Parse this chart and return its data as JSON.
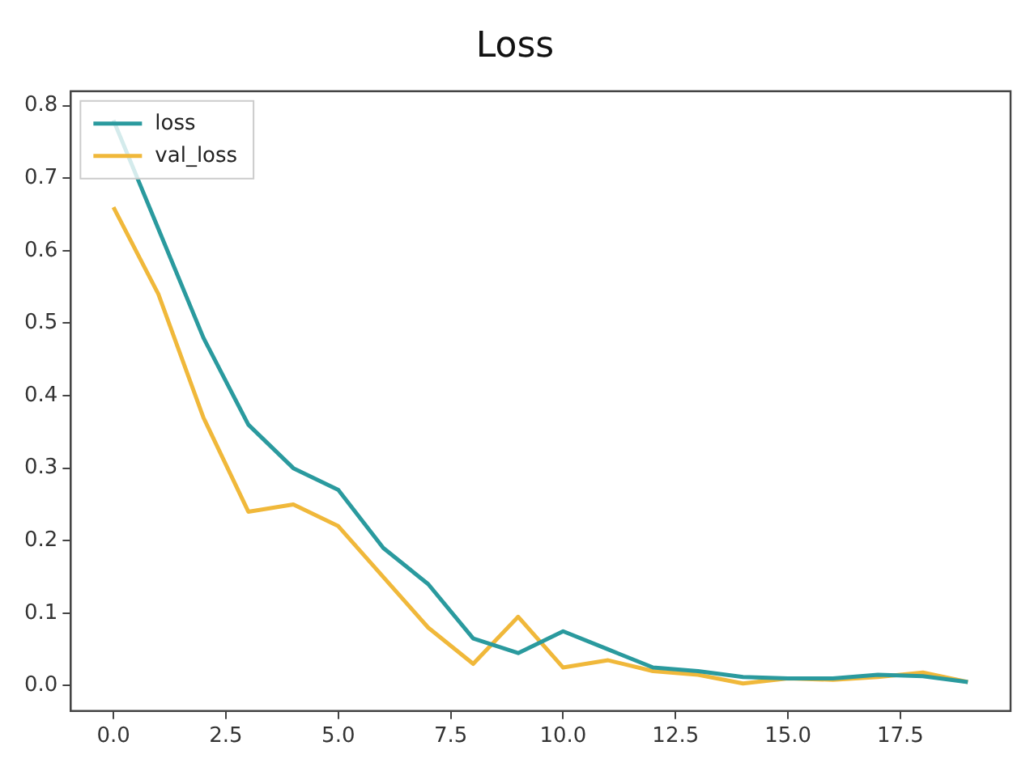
{
  "chart_data": {
    "type": "line",
    "title": "Loss",
    "x": [
      0,
      1,
      2,
      3,
      4,
      5,
      6,
      7,
      8,
      9,
      10,
      11,
      12,
      13,
      14,
      15,
      16,
      17,
      18,
      19
    ],
    "series": [
      {
        "name": "loss",
        "color": "#2a9a9e",
        "values": [
          0.78,
          0.63,
          0.48,
          0.36,
          0.3,
          0.27,
          0.19,
          0.14,
          0.065,
          0.045,
          0.075,
          0.05,
          0.025,
          0.02,
          0.012,
          0.01,
          0.01,
          0.015,
          0.013,
          0.005
        ]
      },
      {
        "name": "val_loss",
        "color": "#f0b83a",
        "values": [
          0.66,
          0.54,
          0.37,
          0.24,
          0.25,
          0.22,
          0.15,
          0.08,
          0.03,
          0.095,
          0.025,
          0.035,
          0.02,
          0.015,
          0.003,
          0.01,
          0.008,
          0.012,
          0.018,
          0.005
        ]
      }
    ],
    "xlim": [
      -0.95,
      19.95
    ],
    "xticks": [
      {
        "value": 0,
        "label": "0.0"
      },
      {
        "value": 2.5,
        "label": "2.5"
      },
      {
        "value": 5,
        "label": "5.0"
      },
      {
        "value": 7.5,
        "label": "7.5"
      },
      {
        "value": 10,
        "label": "10.0"
      },
      {
        "value": 12.5,
        "label": "12.5"
      },
      {
        "value": 15,
        "label": "15.0"
      },
      {
        "value": 17.5,
        "label": "17.5"
      }
    ],
    "ylim": [
      -0.035,
      0.82
    ],
    "yticks": [
      {
        "value": 0,
        "label": "0.0"
      },
      {
        "value": 0.1,
        "label": "0.1"
      },
      {
        "value": 0.2,
        "label": "0.2"
      },
      {
        "value": 0.3,
        "label": "0.3"
      },
      {
        "value": 0.4,
        "label": "0.4"
      },
      {
        "value": 0.5,
        "label": "0.5"
      },
      {
        "value": 0.6,
        "label": "0.6"
      },
      {
        "value": 0.7,
        "label": "0.7"
      },
      {
        "value": 0.8,
        "label": "0.8"
      }
    ],
    "grid": false,
    "legend": "top left",
    "marker": "none",
    "line_style": "solid"
  }
}
